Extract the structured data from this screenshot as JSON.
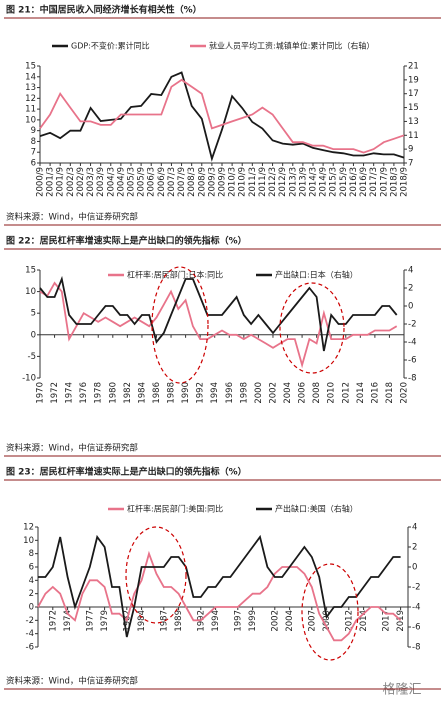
{
  "chart_data": [
    {
      "type": "line",
      "title": "图 21：中国居民收入同经济增长有相关性（%）",
      "source": "资料来源：Wind，中信证券研究部",
      "categories": [
        "2000/9",
        "2001/3",
        "2001/9",
        "2002/3",
        "2002/9",
        "2003/3",
        "2003/9",
        "2004/3",
        "2004/9",
        "2005/3",
        "2005/9",
        "2006/3",
        "2006/9",
        "2007/3",
        "2007/9",
        "2008/3",
        "2008/9",
        "2009/3",
        "2009/9",
        "2010/3",
        "2010/9",
        "2011/3",
        "2011/9",
        "2012/3",
        "2012/9",
        "2013/3",
        "2013/9",
        "2014/3",
        "2014/9",
        "2015/3",
        "2015/9",
        "2016/3",
        "2016/9",
        "2017/3",
        "2017/9",
        "2018/3",
        "2018/9"
      ],
      "series": [
        {
          "name": "GDP:不变价:累计同比",
          "color": "#1a1a1a",
          "values": [
            8.5,
            8.8,
            8.3,
            9.0,
            9.0,
            11.1,
            9.9,
            10.0,
            10.1,
            11.2,
            11.3,
            12.4,
            12.3,
            14.0,
            14.4,
            11.3,
            10.1,
            6.4,
            9.1,
            12.2,
            11.1,
            9.8,
            9.2,
            8.1,
            7.8,
            7.7,
            7.8,
            7.4,
            7.2,
            7.0,
            6.9,
            6.7,
            6.7,
            6.9,
            6.8,
            6.8,
            6.5
          ]
        },
        {
          "name": "就业人员平均工资:城镇单位:累计同比（右轴）",
          "color": "#e8738a",
          "axis": "y2",
          "values": [
            12,
            14,
            17,
            15,
            13,
            13,
            12.5,
            12.5,
            14,
            14,
            14,
            14,
            14,
            18,
            19,
            18,
            17,
            12,
            12.5,
            13,
            13.5,
            14,
            15,
            14,
            12,
            10,
            10,
            9.5,
            9.5,
            9,
            9,
            9,
            8.5,
            9,
            10,
            10.5,
            11
          ]
        }
      ],
      "ylim": [
        6,
        15
      ],
      "yticks": [
        6,
        7,
        8,
        9,
        10,
        11,
        12,
        13,
        14,
        15
      ],
      "y2lim": [
        7,
        21
      ],
      "y2ticks": [
        7,
        9,
        11,
        13,
        15,
        17,
        19,
        21
      ]
    },
    {
      "type": "line",
      "title": "图 22：居民杠杆率增速实际上是产出缺口的领先指标（%）",
      "source": "资料来源：Wind，中信证券研究部",
      "x": [
        1970,
        1971,
        1972,
        1973,
        1974,
        1975,
        1976,
        1977,
        1978,
        1979,
        1980,
        1981,
        1982,
        1983,
        1984,
        1985,
        1986,
        1987,
        1988,
        1989,
        1990,
        1991,
        1992,
        1993,
        1994,
        1995,
        1996,
        1997,
        1998,
        1999,
        2000,
        2001,
        2002,
        2003,
        2004,
        2005,
        2006,
        2007,
        2008,
        2009,
        2010,
        2011,
        2012,
        2013,
        2014,
        2015,
        2016,
        2017,
        2018,
        2019
      ],
      "series": [
        {
          "name": "杠杆率:居民部门:日本:同比",
          "color": "#e8738a",
          "values": [
            10,
            9,
            12,
            10,
            -1,
            2,
            5,
            4,
            3,
            4,
            3,
            2,
            3,
            4,
            3,
            2,
            4,
            7,
            10,
            6,
            8,
            2,
            -1,
            -1,
            0,
            1,
            0,
            0,
            -1,
            0,
            -1,
            -2,
            -3,
            -2,
            -1,
            -1,
            -7,
            -1,
            -2,
            5,
            -1,
            -1,
            -1,
            0,
            0,
            0,
            1,
            1,
            1,
            2
          ]
        },
        {
          "name": "产出缺口:日本（右轴）",
          "color": "#1a1a1a",
          "axis": "y2",
          "values": [
            2,
            1,
            1,
            3,
            -1,
            -2,
            -2,
            -2,
            -1,
            0,
            0,
            -1,
            -1,
            -2,
            -1,
            -1,
            -4,
            -3,
            -1,
            1,
            3,
            3,
            1,
            -1,
            -1,
            -1,
            0,
            1,
            -1,
            -2,
            -1,
            -2,
            -3,
            -2,
            -1,
            0,
            1,
            2,
            1,
            -5,
            -1,
            -2,
            -2,
            -1,
            -1,
            -1,
            -1,
            0,
            0,
            -1
          ]
        }
      ],
      "xlim": [
        1970,
        2020
      ],
      "xticks": [
        1970,
        1972,
        1974,
        1976,
        1978,
        1980,
        1982,
        1984,
        1986,
        1988,
        1990,
        1992,
        1994,
        1996,
        1998,
        2000,
        2002,
        2004,
        2006,
        2008,
        2010,
        2012,
        2014,
        2016,
        2018,
        2020
      ],
      "ylim": [
        -10,
        15
      ],
      "yticks": [
        -10,
        -5,
        0,
        5,
        10,
        15
      ],
      "y2lim": [
        -8,
        4
      ],
      "y2ticks": [
        -8,
        -6,
        -4,
        -2,
        0,
        2,
        4
      ]
    },
    {
      "type": "line",
      "title": "图 23：居民杠杆率增速实际上是产出缺口的领先指标（%）",
      "source": "资料来源：Wind，中信证券研究部",
      "x": [
        1970,
        1971,
        1972,
        1973,
        1974,
        1975,
        1976,
        1977,
        1978,
        1979,
        1980,
        1981,
        1982,
        1983,
        1984,
        1985,
        1986,
        1987,
        1988,
        1989,
        1990,
        1991,
        1992,
        1993,
        1994,
        1995,
        1996,
        1997,
        1998,
        1999,
        2000,
        2001,
        2002,
        2003,
        2004,
        2005,
        2006,
        2007,
        2008,
        2009,
        2010,
        2011,
        2012,
        2013,
        2014,
        2015,
        2016,
        2017,
        2018,
        2019
      ],
      "series": [
        {
          "name": "杠杆率:居民部门:美国:同比",
          "color": "#e8738a",
          "values": [
            0,
            2,
            3,
            2,
            -1,
            -2,
            2,
            4,
            4,
            3,
            -1,
            -1,
            -2,
            2,
            4,
            8,
            5,
            3,
            3,
            2,
            0,
            -2,
            -2,
            -1,
            0,
            0,
            0,
            0,
            1,
            2,
            2,
            3,
            5,
            6,
            6,
            6,
            5,
            3,
            -1,
            -3,
            -5,
            -5,
            -4,
            -2,
            -1,
            0,
            0,
            -1,
            -1,
            -2
          ]
        },
        {
          "name": "产出缺口:美国（右轴）",
          "color": "#1a1a1a",
          "axis": "y2",
          "values": [
            -1,
            -1,
            0,
            3,
            -1,
            -4,
            -2,
            0,
            3,
            2,
            -2,
            -2,
            -7,
            -4,
            0,
            0,
            0,
            0,
            1,
            1,
            0,
            -3,
            -3,
            -2,
            -2,
            -1,
            -1,
            0,
            1,
            2,
            3,
            0,
            -1,
            -1,
            0,
            1,
            2,
            1,
            -1,
            -5,
            -4,
            -4,
            -3,
            -3,
            -2,
            -1,
            -1,
            0,
            1,
            1
          ]
        }
      ],
      "xlim": [
        1970,
        2020
      ],
      "xticks": [
        1972,
        1974,
        1977,
        1979,
        1982,
        1984,
        1987,
        1989,
        1992,
        1994,
        1997,
        1999,
        2002,
        2004,
        2007,
        2009,
        2012,
        2014,
        2017,
        2019
      ],
      "ylim": [
        -6,
        12
      ],
      "yticks": [
        -6,
        -4,
        -2,
        0,
        2,
        4,
        6,
        8,
        10,
        12
      ],
      "y2lim": [
        -8,
        4
      ],
      "y2ticks": [
        -8,
        -6,
        -4,
        -2,
        0,
        2,
        4
      ]
    }
  ],
  "watermark": "格隆汇"
}
